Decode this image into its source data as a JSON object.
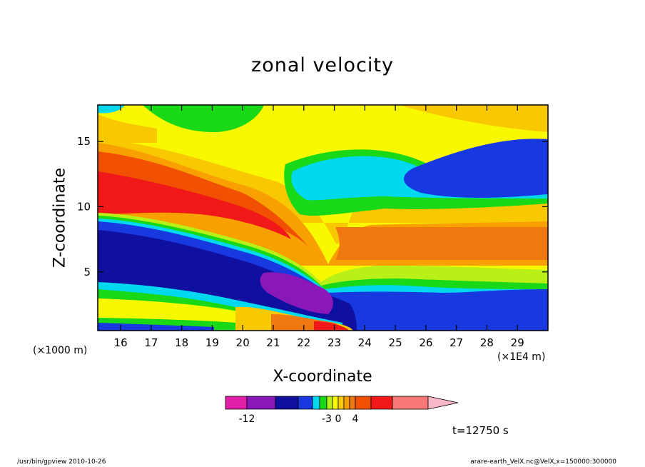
{
  "chart_data": {
    "type": "heatmap",
    "title": "zonal velocity",
    "xlabel": "X-coordinate",
    "ylabel": "Z-coordinate",
    "x_unit_left": "(×1000 m)",
    "x_unit_right": "(×1E4 m)",
    "xlim": [
      15.25,
      30.0
    ],
    "ylim": [
      0.5,
      17.8
    ],
    "x_ticks": [
      16,
      17,
      18,
      19,
      20,
      21,
      22,
      23,
      24,
      25,
      26,
      27,
      28,
      29
    ],
    "y_ticks": [
      5,
      10,
      15
    ],
    "colorbar": {
      "colors": [
        "#e020a8",
        "#8a18b8",
        "#1010a0",
        "#1838e0",
        "#00d8f0",
        "#18d818",
        "#b8f018",
        "#f8f800",
        "#f8c800",
        "#f8a000",
        "#f07810",
        "#f05000",
        "#f01818",
        "#f87878",
        "#f8b8c8"
      ],
      "tick_labels": [
        "-12",
        "-3",
        "0",
        "4"
      ],
      "tick_values": [
        -12,
        -3,
        0,
        4
      ],
      "extend": "max"
    },
    "time_label": "t=12750 s"
  },
  "footer": {
    "left": "/usr/bin/gpview   2010-10-26",
    "right": "arare-earth_VelX.nc@VelX,x=150000:300000"
  }
}
